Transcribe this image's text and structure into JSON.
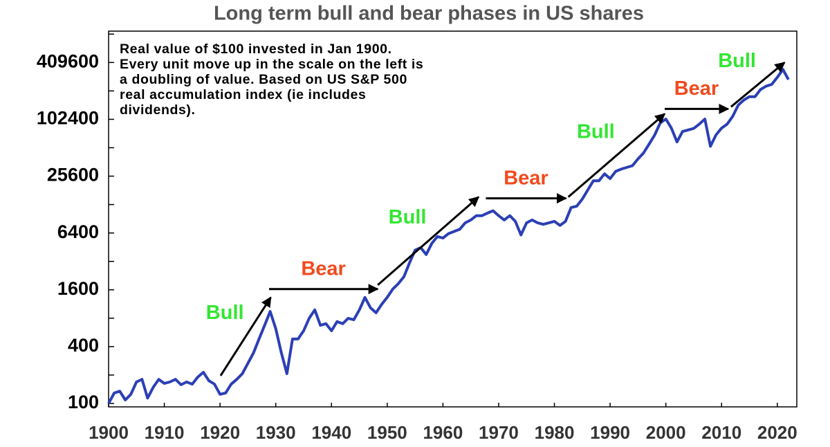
{
  "chart_data": {
    "type": "line",
    "title": "Long term bull and bear phases in US shares",
    "note": "Real value of $100 invested in Jan 1900. Every unit move up in the scale on the left is a doubling of value. Based on US S&P 500 real accumulation index (ie includes dividends).",
    "color": "#2b3fb5",
    "log_scale": true,
    "x": [
      1900,
      1901,
      1902,
      1903,
      1904,
      1905,
      1906,
      1907,
      1908,
      1909,
      1910,
      1911,
      1912,
      1913,
      1914,
      1915,
      1916,
      1917,
      1918,
      1919,
      1920,
      1921,
      1922,
      1923,
      1924,
      1925,
      1926,
      1927,
      1928,
      1929,
      1930,
      1931,
      1932,
      1933,
      1934,
      1935,
      1936,
      1937,
      1938,
      1939,
      1940,
      1941,
      1942,
      1943,
      1944,
      1945,
      1946,
      1947,
      1948,
      1949,
      1950,
      1951,
      1952,
      1953,
      1954,
      1955,
      1956,
      1957,
      1958,
      1959,
      1960,
      1961,
      1962,
      1963,
      1964,
      1965,
      1966,
      1967,
      1968,
      1969,
      1970,
      1971,
      1972,
      1973,
      1974,
      1975,
      1976,
      1977,
      1978,
      1979,
      1980,
      1981,
      1982,
      1983,
      1984,
      1985,
      1986,
      1987,
      1988,
      1989,
      1990,
      1991,
      1992,
      1993,
      1994,
      1995,
      1996,
      1997,
      1998,
      1999,
      2000,
      2001,
      2002,
      2003,
      2004,
      2005,
      2006,
      2007,
      2008,
      2009,
      2010,
      2011,
      2012,
      2013,
      2014,
      2015,
      2016,
      2017,
      2018,
      2019,
      2020,
      2021,
      2022
    ],
    "values": [
      100,
      129,
      135,
      109,
      125,
      169,
      180,
      114,
      148,
      180,
      163,
      169,
      180,
      158,
      169,
      160,
      190,
      214,
      174,
      160,
      125,
      129,
      160,
      180,
      207,
      266,
      343,
      482,
      673,
      944,
      620,
      343,
      207,
      482,
      482,
      589,
      798,
      980,
      673,
      700,
      589,
      736,
      700,
      798,
      770,
      980,
      1330,
      1030,
      914,
      1120,
      1330,
      1630,
      1860,
      2200,
      3090,
      4200,
      4470,
      3780,
      4960,
      5860,
      5660,
      6300,
      6640,
      7000,
      8180,
      8790,
      9750,
      9750,
      10400,
      11000,
      9750,
      8790,
      9750,
      8490,
      6100,
      8180,
      8790,
      8180,
      7900,
      8180,
      8490,
      7700,
      8490,
      11900,
      12300,
      14600,
      18300,
      22900,
      22900,
      27100,
      24100,
      28800,
      30400,
      31700,
      33000,
      39000,
      45000,
      56000,
      70000,
      94000,
      103000,
      82600,
      59000,
      76000,
      79000,
      82000,
      91000,
      103000,
      53000,
      70000,
      82600,
      91000,
      110000,
      145000,
      164000,
      178000,
      178000,
      212000,
      230000,
      240000,
      285000,
      346000,
      270000
    ],
    "xlim": [
      1900,
      2023.5
    ],
    "xticks": [
      1900,
      1910,
      1920,
      1930,
      1940,
      1950,
      1960,
      1970,
      1980,
      1990,
      2000,
      2010,
      2020
    ],
    "ylim": [
      92,
      880000
    ],
    "yticks": [
      100,
      400,
      1600,
      6400,
      25600,
      102400,
      409600
    ],
    "yticks_minor": [
      200,
      800,
      3200,
      12800,
      51200,
      204800,
      819200
    ],
    "phases": [
      {
        "label": "Bull",
        "color": "#33e633",
        "from_year": 1920.1,
        "to_year": 1929.1,
        "from_value": 197,
        "to_value": 1330
      },
      {
        "label": "Bear",
        "color": "#f04a1e",
        "from_year": 1928.8,
        "to_year": 1948.3,
        "from_value": 1630,
        "to_value": 1630
      },
      {
        "label": "Bull",
        "color": "#33e633",
        "from_year": 1948.3,
        "to_year": 1966.4,
        "from_value": 1800,
        "to_value": 15400
      },
      {
        "label": "Bear",
        "color": "#f04a1e",
        "from_year": 1967.7,
        "to_year": 1982.1,
        "from_value": 14900,
        "to_value": 14900
      },
      {
        "label": "Bull",
        "color": "#33e633",
        "from_year": 1982.5,
        "to_year": 1999.8,
        "from_value": 15400,
        "to_value": 117000
      },
      {
        "label": "Bear",
        "color": "#f04a1e",
        "from_year": 1999.8,
        "to_year": 2011.2,
        "from_value": 132000,
        "to_value": 132000
      },
      {
        "label": "Bull",
        "color": "#33e633",
        "from_year": 2011.7,
        "to_year": 2021.3,
        "from_value": 139000,
        "to_value": 409600
      }
    ]
  }
}
